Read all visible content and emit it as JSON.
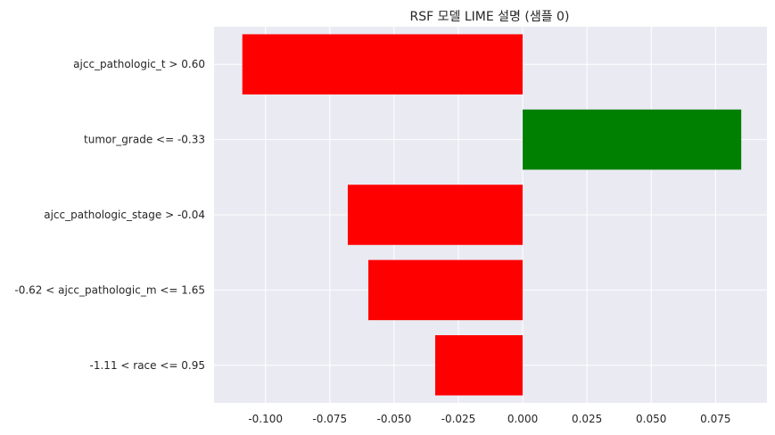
{
  "chart_data": {
    "type": "bar",
    "orientation": "horizontal",
    "title": "RSF 모델 LIME 설명 (샘플 0)",
    "xlabel": "",
    "ylabel": "",
    "categories": [
      "ajcc_pathologic_t > 0.60",
      "tumor_grade <= -0.33",
      "ajcc_pathologic_stage > -0.04",
      "-0.62 < ajcc_pathologic_m <= 1.65",
      "-1.11 < race <= 0.95"
    ],
    "values": [
      -0.109,
      0.085,
      -0.068,
      -0.06,
      -0.034
    ],
    "xlim": [
      -0.12,
      0.095
    ],
    "xticks": [
      -0.1,
      -0.075,
      -0.05,
      -0.025,
      0.0,
      0.025,
      0.05,
      0.075
    ],
    "xtick_labels": [
      "-0.100",
      "-0.075",
      "-0.050",
      "-0.025",
      "0.000",
      "0.025",
      "0.050",
      "0.075"
    ],
    "grid": true,
    "colors": {
      "positive": "#008000",
      "negative": "#ff0000",
      "background": "#eaeaf2",
      "grid": "#ffffff",
      "text": "#262626"
    }
  }
}
